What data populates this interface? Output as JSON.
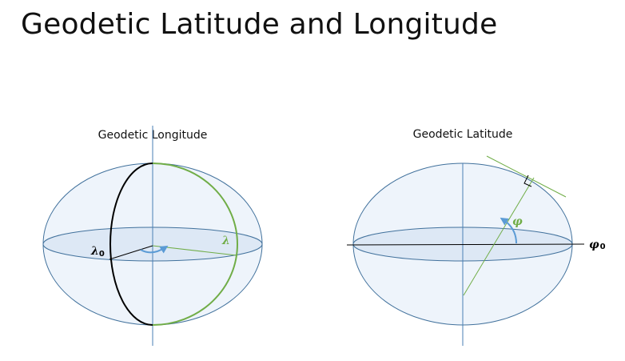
{
  "title": "Geodetic Latitude and Longitude",
  "colors": {
    "ellipsoid_fill": "#eef4fb",
    "equator_fill": "#dde8f5",
    "outline": "#41719c",
    "axis": "#4a7fb5",
    "green": "#70ad47",
    "arrow": "#5b9bd5",
    "black": "#000000"
  },
  "longitude": {
    "caption": "Geodetic Longitude",
    "lambda_symbol": "λ",
    "lambda0_symbol": "λ",
    "lambda0_subscript": "0"
  },
  "latitude": {
    "caption": "Geodetic Latitude",
    "phi_symbol": "φ",
    "phi0_symbol": "φ",
    "phi0_subscript": "0"
  }
}
